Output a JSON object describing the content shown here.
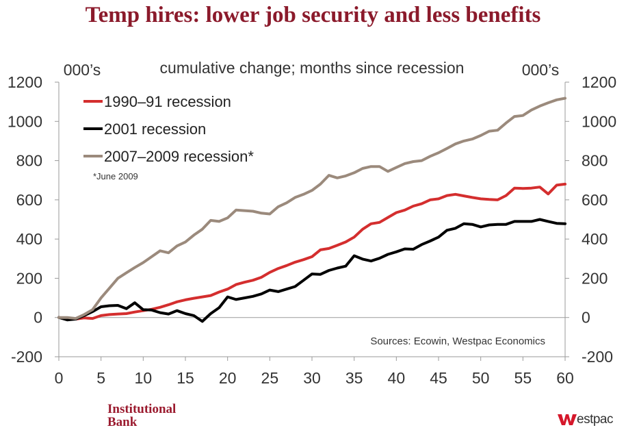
{
  "title": "Temp hires: lower job security and less benefits",
  "brand": {
    "line1": "Institutional",
    "line2": "Bank",
    "logo_text": "estpac",
    "logo_name": "westpac-w-logo"
  },
  "colors": {
    "title": "#8b1a2b",
    "series_1990": "#d42e2e",
    "series_2001": "#000000",
    "series_2007": "#9b8a7c",
    "brand": "#9b1b2f",
    "logo_red": "#d5182b"
  },
  "chart_data": {
    "type": "line",
    "title": "cumulative change; months since recession",
    "ylabel_left": "000’s",
    "ylabel_right": "000’s",
    "xlim": [
      0,
      60
    ],
    "ylim": [
      -200,
      1200
    ],
    "x_ticks": [
      0,
      5,
      10,
      15,
      20,
      25,
      30,
      35,
      40,
      45,
      50,
      55,
      60
    ],
    "y_ticks": [
      -200,
      0,
      200,
      400,
      600,
      800,
      1000,
      1200
    ],
    "grid": false,
    "legend": "top-left",
    "annotations": [
      "*June 2009"
    ],
    "source": "Sources: Ecowin, Westpac Economics",
    "series": [
      {
        "name": "1990–91 recession",
        "color": "#d42e2e",
        "values": [
          0,
          -5,
          -8,
          -2,
          -5,
          10,
          15,
          18,
          20,
          28,
          35,
          42,
          52,
          65,
          80,
          90,
          98,
          105,
          112,
          130,
          145,
          168,
          180,
          190,
          205,
          230,
          250,
          265,
          282,
          295,
          310,
          345,
          352,
          368,
          385,
          410,
          450,
          478,
          485,
          510,
          535,
          548,
          568,
          580,
          600,
          605,
          622,
          628,
          620,
          612,
          605,
          602,
          600,
          622,
          660,
          658,
          660,
          665,
          630,
          675,
          680
        ]
      },
      {
        "name": "2001 recession",
        "color": "#000000",
        "values": [
          0,
          -12,
          -8,
          10,
          30,
          55,
          60,
          62,
          45,
          75,
          40,
          38,
          25,
          18,
          35,
          20,
          10,
          -20,
          20,
          50,
          105,
          92,
          100,
          108,
          120,
          140,
          132,
          145,
          158,
          190,
          222,
          220,
          240,
          252,
          262,
          315,
          298,
          288,
          302,
          322,
          335,
          350,
          348,
          372,
          390,
          410,
          445,
          455,
          478,
          475,
          462,
          472,
          475,
          475,
          490,
          490,
          490,
          500,
          490,
          480,
          478
        ]
      },
      {
        "name": "2007–2009 recession*",
        "color": "#9b8a7c",
        "values": [
          0,
          0,
          -5,
          15,
          40,
          100,
          150,
          200,
          228,
          255,
          280,
          310,
          340,
          330,
          365,
          385,
          420,
          450,
          495,
          490,
          508,
          548,
          545,
          542,
          532,
          528,
          565,
          585,
          612,
          628,
          648,
          680,
          725,
          712,
          722,
          738,
          760,
          770,
          770,
          745,
          765,
          785,
          795,
          800,
          822,
          840,
          862,
          885,
          900,
          910,
          928,
          950,
          955,
          992,
          1025,
          1030,
          1058,
          1078,
          1095,
          1110,
          1118
        ]
      }
    ]
  }
}
